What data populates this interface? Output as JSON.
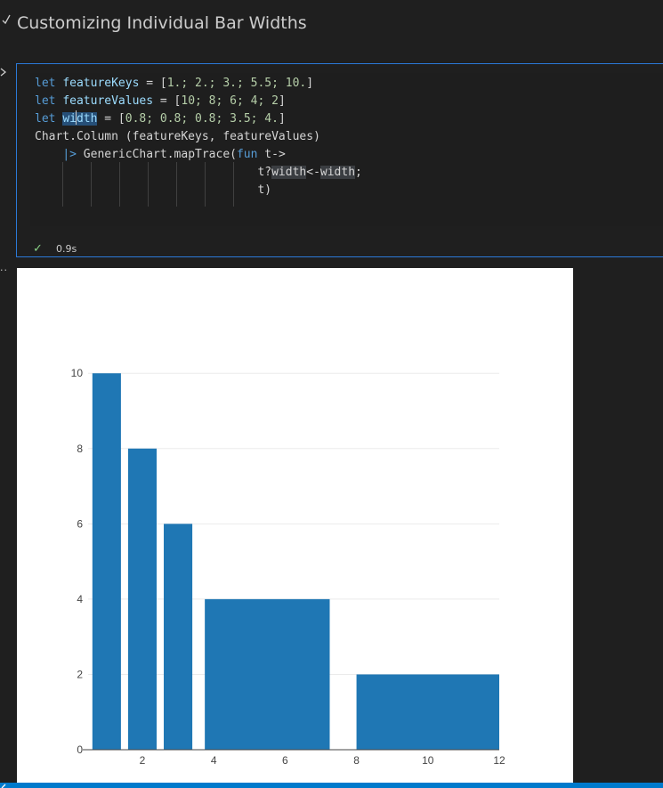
{
  "header": {
    "title": "Customizing Individual Bar Widths"
  },
  "cell": {
    "status": "0.9s",
    "code": {
      "line1": {
        "kw": "let",
        "name": "featureKeys",
        "op": " = [",
        "vals": "1.; 2.; 3.; 5.5; 10.",
        "close": "]"
      },
      "line2": {
        "kw": "let",
        "name": "featureValues",
        "op": " = [",
        "vals": "10; 8; 6; 4; 2",
        "close": "]"
      },
      "line3": {
        "kw": "let",
        "name_a": "wi",
        "name_b": "dth",
        "op": " = [",
        "vals": "0.8; 0.8; 0.8; 3.5; 4.",
        "close": "]"
      },
      "line4": "Chart.Column (featureKeys, featureValues)",
      "line5": {
        "pipe": "|>",
        "call": " GenericChart.mapTrace(",
        "fun": "fun",
        "param": " t->"
      },
      "line6": {
        "a": "t?",
        "b": "width",
        "c": "<-",
        "d": "width",
        "e": ";"
      },
      "line7": "t)"
    }
  },
  "colors": {
    "bar": "#1f77b4",
    "accent": "#007acc",
    "cell_border": "#2b79d8"
  },
  "chart_data": {
    "type": "bar",
    "x": [
      1,
      2,
      3,
      5.5,
      10
    ],
    "values": [
      10,
      8,
      6,
      4,
      2
    ],
    "widths": [
      0.8,
      0.8,
      0.8,
      3.5,
      4
    ],
    "xlim": [
      0.48,
      12
    ],
    "ylim": [
      0,
      10.526
    ],
    "x_ticks": [
      2,
      4,
      6,
      8,
      10,
      12
    ],
    "y_ticks": [
      0,
      2,
      4,
      6,
      8,
      10
    ],
    "grid": true
  }
}
